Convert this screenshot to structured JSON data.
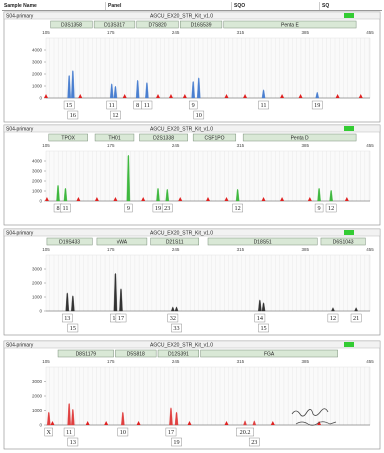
{
  "header": {
    "sample_name": "Sample Name",
    "panel": "Panel",
    "sqo": "SQO",
    "sq": "SQ"
  },
  "accent": {
    "status_green": "#33cc33",
    "marker_fill": "#d9e8d6",
    "artifact_red": "#e02020"
  },
  "handwriting": "",
  "chart_data": [
    {
      "type": "line",
      "sample": "S04-primary",
      "panel": "AGCU_EX20_STR_Kit_v1.0",
      "dye_color": "#4a7fd0",
      "x_ticks": [
        "105",
        "175",
        "245",
        "315",
        "385",
        "455"
      ],
      "y_ticks": [
        "4000",
        "3000",
        "2000",
        "1000",
        "0"
      ],
      "ymax": 5000,
      "markers": [
        {
          "name": "D3S1358",
          "x0": 110,
          "x1": 155
        },
        {
          "name": "D13S317",
          "x0": 157,
          "x1": 201
        },
        {
          "name": "D7S820",
          "x0": 203,
          "x1": 248
        },
        {
          "name": "D16S539",
          "x0": 250,
          "x1": 295
        },
        {
          "name": "Penta E",
          "x0": 297,
          "x1": 440
        }
      ],
      "peaks": [
        {
          "x": 130,
          "h": 1900,
          "label": "15",
          "row": 1
        },
        {
          "x": 134,
          "h": 2300,
          "label": "16",
          "row": 2
        },
        {
          "x": 176,
          "h": 1200,
          "label": "11",
          "row": 1
        },
        {
          "x": 180,
          "h": 1000,
          "label": "12",
          "row": 2
        },
        {
          "x": 204,
          "h": 1500,
          "label": "8",
          "row": 1
        },
        {
          "x": 214,
          "h": 1300,
          "label": "11",
          "row": 1
        },
        {
          "x": 264,
          "h": 1400,
          "label": "9",
          "row": 1
        },
        {
          "x": 270,
          "h": 1700,
          "label": "10",
          "row": 2
        },
        {
          "x": 340,
          "h": 700,
          "label": "11",
          "row": 1
        },
        {
          "x": 398,
          "h": 500,
          "label": "19",
          "row": 1
        }
      ],
      "artifacts": [
        105,
        142,
        190,
        226,
        240,
        255,
        300,
        320,
        360,
        380,
        420,
        445
      ]
    },
    {
      "type": "line",
      "sample": "S04-primary",
      "panel": "AGCU_EX20_STR_Kit_v1.0",
      "dye_color": "#3fb83f",
      "x_ticks": [
        "105",
        "175",
        "245",
        "315",
        "385",
        "455"
      ],
      "y_ticks": [
        "4000",
        "3000",
        "2000",
        "1000",
        "0"
      ],
      "ymax": 5000,
      "markers": [
        {
          "name": "TPOX",
          "x0": 108,
          "x1": 150
        },
        {
          "name": "TH01",
          "x0": 158,
          "x1": 200
        },
        {
          "name": "D2S1338",
          "x0": 206,
          "x1": 258
        },
        {
          "name": "CSF1PO",
          "x0": 264,
          "x1": 310
        },
        {
          "name": "Penta D",
          "x0": 318,
          "x1": 440
        }
      ],
      "peaks": [
        {
          "x": 118,
          "h": 1600,
          "label": "8",
          "row": 1
        },
        {
          "x": 126,
          "h": 1300,
          "label": "11",
          "row": 1
        },
        {
          "x": 194,
          "h": 4600,
          "label": "9",
          "row": 1
        },
        {
          "x": 226,
          "h": 1300,
          "label": "19",
          "row": 1
        },
        {
          "x": 236,
          "h": 1200,
          "label": "23",
          "row": 1
        },
        {
          "x": 312,
          "h": 1200,
          "label": "12",
          "row": 1
        },
        {
          "x": 400,
          "h": 1300,
          "label": "9",
          "row": 1
        },
        {
          "x": 413,
          "h": 1100,
          "label": "12",
          "row": 1
        }
      ],
      "artifacts": [
        106,
        140,
        160,
        180,
        210,
        250,
        280,
        300,
        340,
        360,
        390,
        430
      ]
    },
    {
      "type": "line",
      "sample": "S04-primary",
      "panel": "AGCU_EX20_STR_Kit_v1.0",
      "dye_color": "#333333",
      "x_ticks": [
        "105",
        "175",
        "245",
        "315",
        "385",
        "455"
      ],
      "y_ticks": [
        "3000",
        "2000",
        "1000",
        "0"
      ],
      "ymax": 4000,
      "markers": [
        {
          "name": "D19S433",
          "x0": 106,
          "x1": 155
        },
        {
          "name": "vWA",
          "x0": 160,
          "x1": 214
        },
        {
          "name": "D21S11",
          "x0": 218,
          "x1": 270
        },
        {
          "name": "D18S51",
          "x0": 280,
          "x1": 398
        },
        {
          "name": "D6S1043",
          "x0": 402,
          "x1": 450
        }
      ],
      "peaks": [
        {
          "x": 128,
          "h": 1300,
          "label": "13",
          "row": 1
        },
        {
          "x": 134,
          "h": 1100,
          "label": "15",
          "row": 2
        },
        {
          "x": 180,
          "h": 2700,
          "label": "14",
          "row": 1
        },
        {
          "x": 186,
          "h": 1600,
          "label": "17",
          "row": 1
        },
        {
          "x": 242,
          "h": 300,
          "label": "32",
          "row": 1
        },
        {
          "x": 246,
          "h": 300,
          "label": "33",
          "row": 2
        },
        {
          "x": 336,
          "h": 800,
          "label": "14",
          "row": 1
        },
        {
          "x": 340,
          "h": 600,
          "label": "15",
          "row": 2
        },
        {
          "x": 415,
          "h": 250,
          "label": "12",
          "row": 1
        },
        {
          "x": 440,
          "h": 250,
          "label": "21",
          "row": 1
        }
      ],
      "artifacts": []
    },
    {
      "type": "line",
      "sample": "S04-primary",
      "panel": "AGCU_EX20_STR_Kit_v1.0",
      "dye_color": "#e04040",
      "x_ticks": [
        "105",
        "175",
        "245",
        "315",
        "385",
        "455"
      ],
      "y_ticks": [
        "3000",
        "2000",
        "1000",
        "0"
      ],
      "ymax": 4000,
      "markers": [
        {
          "name": "D8S1179",
          "x0": 118,
          "x1": 178
        },
        {
          "name": "D5S818",
          "x0": 180,
          "x1": 224
        },
        {
          "name": "D12S391",
          "x0": 226,
          "x1": 270
        },
        {
          "name": "FGA",
          "x0": 272,
          "x1": 420
        }
      ],
      "peaks": [
        {
          "x": 108,
          "h": 900,
          "label": "X",
          "row": 1
        },
        {
          "x": 130,
          "h": 1500,
          "label": "11",
          "row": 1
        },
        {
          "x": 134,
          "h": 1100,
          "label": "13",
          "row": 2
        },
        {
          "x": 188,
          "h": 900,
          "label": "10",
          "row": 1
        },
        {
          "x": 240,
          "h": 1200,
          "label": "17",
          "row": 1
        },
        {
          "x": 246,
          "h": 900,
          "label": "19",
          "row": 2
        },
        {
          "x": 320,
          "h": 300,
          "label": "20.2",
          "row": 1
        },
        {
          "x": 330,
          "h": 300,
          "label": "23",
          "row": 2
        }
      ],
      "artifacts": [
        112,
        150,
        170,
        205,
        260,
        300,
        350,
        400
      ]
    }
  ]
}
